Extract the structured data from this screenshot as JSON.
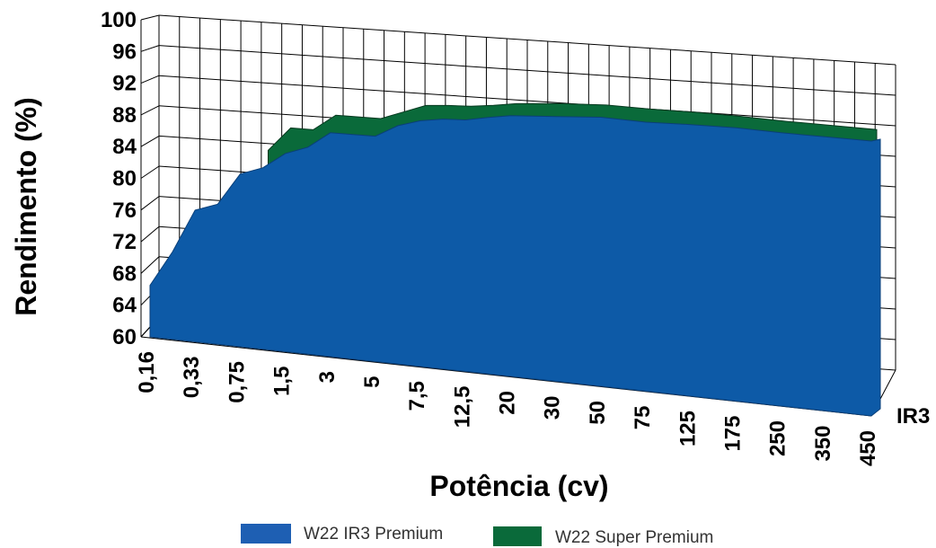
{
  "chart_data": {
    "type": "area",
    "xlabel": "Potência (cv)",
    "ylabel": "Rendimento (%)",
    "ylim": [
      60,
      100
    ],
    "yticks": [
      "60",
      "64",
      "68",
      "72",
      "76",
      "80",
      "84",
      "88",
      "92",
      "96",
      "100"
    ],
    "categories": [
      "0,16",
      "0,33",
      "0,75",
      "1,5",
      "3",
      "5",
      "7,5",
      "12,5",
      "20",
      "30",
      "50",
      "75",
      "125",
      "175",
      "250",
      "350",
      "450"
    ],
    "depth_label": "IR3",
    "legend_position": "bottom",
    "series": [
      {
        "name": "W22 IR3 Premium",
        "color": "#0d5aa7",
        "x": [
          0,
          0.5,
          1,
          1.5,
          2,
          2.5,
          3,
          3.5,
          4,
          4.5,
          5,
          5.5,
          6,
          6.5,
          7,
          7.5,
          8,
          9,
          10,
          11,
          12,
          13,
          14,
          15,
          16
        ],
        "values": [
          66.5,
          71,
          76.5,
          77.5,
          81.5,
          82.5,
          84.5,
          85.5,
          87.5,
          87.5,
          87.5,
          89,
          89.8,
          90.2,
          90.3,
          90.8,
          91.2,
          91.5,
          91.8,
          91.6,
          91.7,
          91.7,
          91.5,
          91.4,
          91.3
        ]
      },
      {
        "name": "W22 Super Premium",
        "color": "#0a6a3a",
        "x": [
          2.5,
          3,
          3.5,
          4,
          4.5,
          5,
          5.5,
          6,
          6.5,
          7,
          7.5,
          8,
          9,
          10,
          11,
          12,
          13,
          14,
          15,
          16
        ],
        "values": [
          84,
          87,
          87,
          89,
          89,
          89,
          90,
          91,
          91.2,
          91.3,
          91.6,
          92,
          92.4,
          92.6,
          92.5,
          92.5,
          92.4,
          92.2,
          92.1,
          92
        ]
      }
    ]
  }
}
